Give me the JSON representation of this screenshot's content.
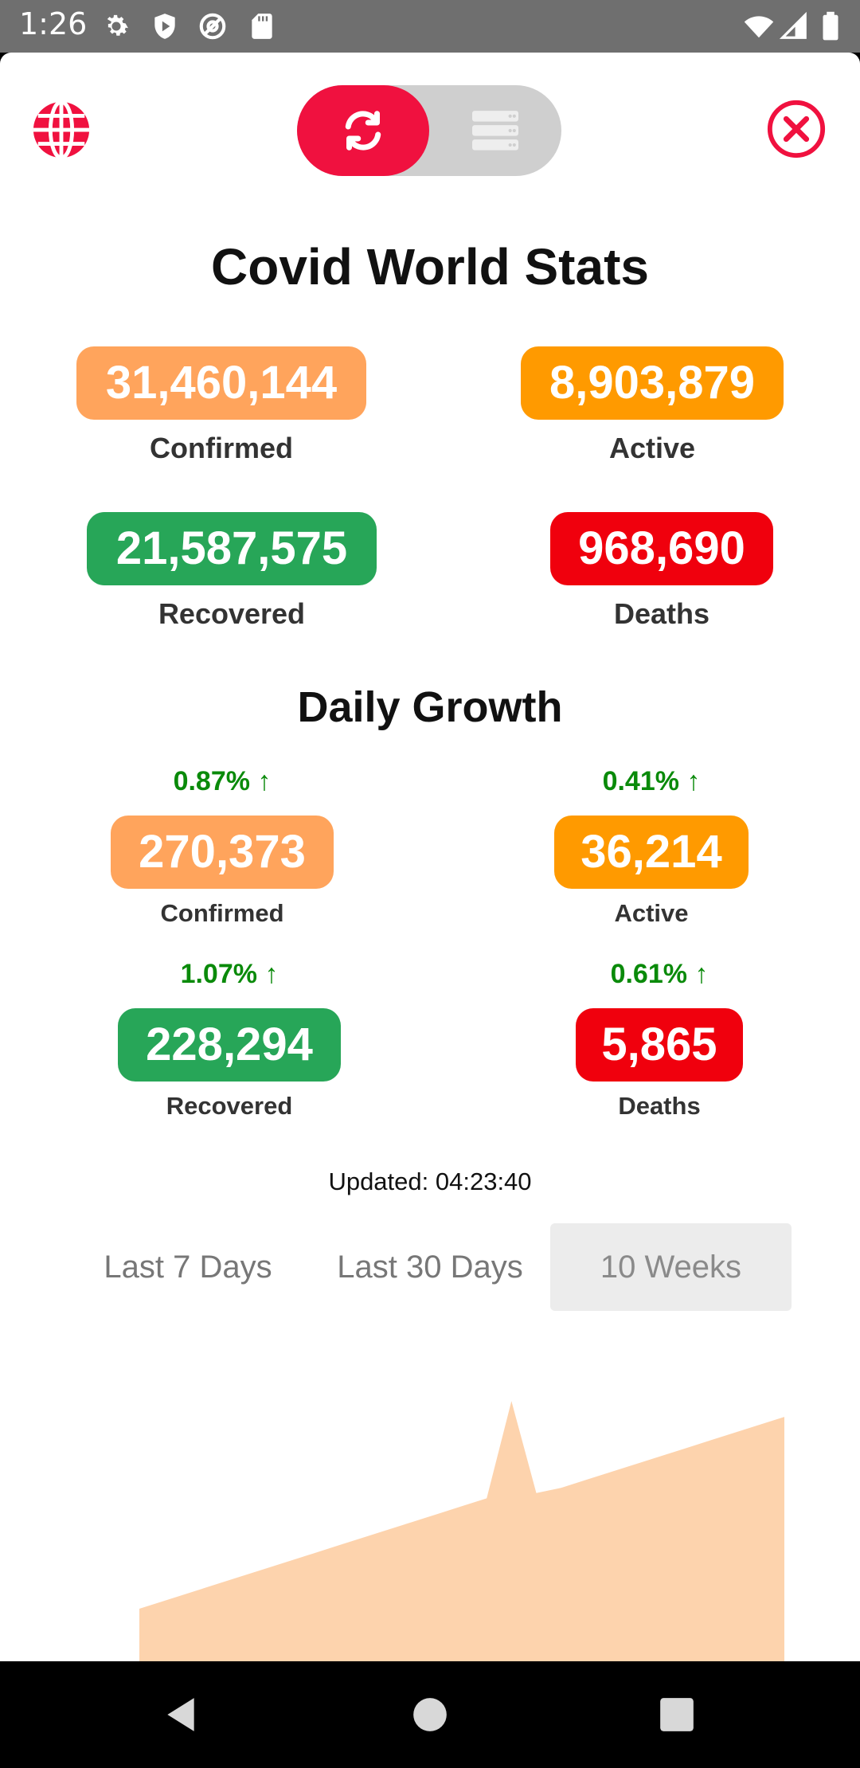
{
  "status_bar": {
    "time": "1:26",
    "icons_left": [
      "gear-icon",
      "shield-play-icon",
      "at-sign-icon",
      "sd-card-icon"
    ],
    "icons_right": [
      "wifi-icon",
      "cell-signal-icon",
      "battery-icon"
    ]
  },
  "header": {
    "left_icon": "globe-icon",
    "toggle": {
      "active": "refresh-icon",
      "inactive": "list-icon"
    },
    "right_icon": "close-circle-icon"
  },
  "title": "Covid World Stats",
  "totals": {
    "confirmed": {
      "value": "31,460,144",
      "label": "Confirmed"
    },
    "active": {
      "value": "8,903,879",
      "label": "Active"
    },
    "recovered": {
      "value": "21,587,575",
      "label": "Recovered"
    },
    "deaths": {
      "value": "968,690",
      "label": "Deaths"
    }
  },
  "daily_growth": {
    "title": "Daily Growth",
    "confirmed": {
      "pct": "0.87%",
      "value": "270,373",
      "label": "Confirmed"
    },
    "active": {
      "pct": "0.41%",
      "value": "36,214",
      "label": "Active"
    },
    "recovered": {
      "pct": "1.07%",
      "value": "228,294",
      "label": "Recovered"
    },
    "deaths": {
      "pct": "0.61%",
      "value": "5,865",
      "label": "Deaths"
    }
  },
  "updated": "Updated: 04:23:40",
  "tabs": [
    {
      "label": "Last 7 Days",
      "selected": false
    },
    {
      "label": "Last 30 Days",
      "selected": false
    },
    {
      "label": "10 Weeks",
      "selected": true
    }
  ],
  "colors": {
    "confirmed": "#ffa45c",
    "active": "#ff9a00",
    "recovered": "#27a658",
    "deaths": "#f0000d",
    "accent": "#f0113f",
    "growth_text": "#0a8a0a",
    "chart_fill": "#fdd3ad"
  },
  "chart_data": {
    "type": "area",
    "series": [
      {
        "values": [
          0.2,
          0.23,
          0.26,
          0.29,
          0.32,
          0.35,
          0.38,
          0.41,
          0.44,
          0.47,
          0.5,
          0.53,
          0.56,
          0.59,
          0.62,
          0.99,
          0.64,
          0.66,
          0.69,
          0.72,
          0.75,
          0.78,
          0.81,
          0.84,
          0.87,
          0.9,
          0.93
        ]
      }
    ],
    "grid": false,
    "legend": "none"
  },
  "nav_bar": {
    "icons": [
      "back-icon",
      "home-icon",
      "recents-icon"
    ]
  }
}
